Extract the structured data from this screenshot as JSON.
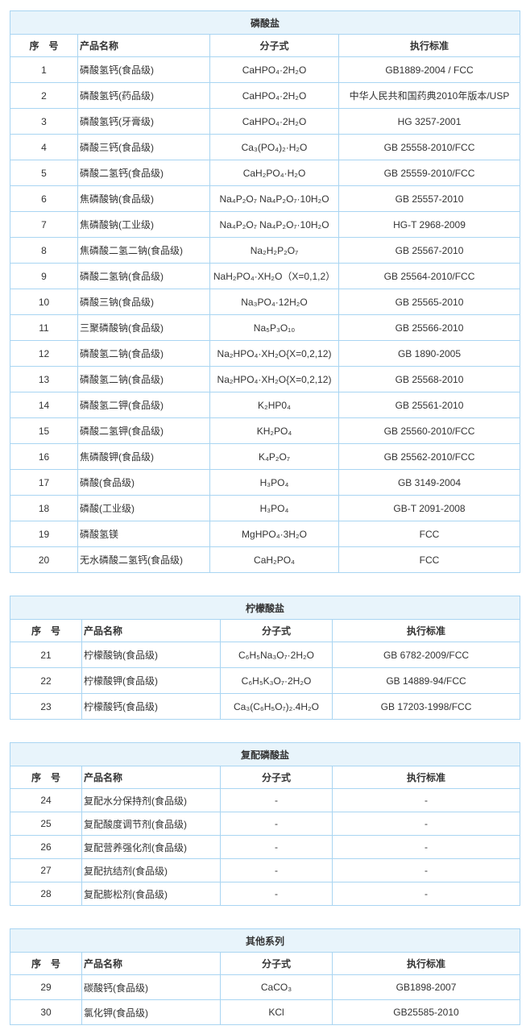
{
  "columns": {
    "index": "序　号",
    "name": "产品名称",
    "formula": "分子式",
    "standard": "执行标准"
  },
  "tables": [
    {
      "title": "磷酸盐",
      "rows": [
        {
          "no": "1",
          "name": "磷酸氢钙(食品级)",
          "formula": "CaHPO₄·2H₂O",
          "standard": "GB1889-2004 / FCC"
        },
        {
          "no": "2",
          "name": "磷酸氢钙(药品级)",
          "formula": "CaHPO₄·2H₂O",
          "standard": "中华人民共和国药典2010年版本/USP"
        },
        {
          "no": "3",
          "name": "磷酸氢钙(牙膏级)",
          "formula": "CaHPO₄·2H₂O",
          "standard": "HG 3257-2001"
        },
        {
          "no": "4",
          "name": "磷酸三钙(食品级)",
          "formula": "Ca₃(PO₄)₂·H₂O",
          "standard": "GB 25558-2010/FCC"
        },
        {
          "no": "5",
          "name": "磷酸二氢钙(食品级)",
          "formula": "CaH₂PO₄·H₂O",
          "standard": "GB 25559-2010/FCC"
        },
        {
          "no": "6",
          "name": "焦磷酸钠(食品级)",
          "formula": "Na₄P₂O₇ Na₄P₂O₇·10H₂O",
          "standard": "GB 25557-2010"
        },
        {
          "no": "7",
          "name": "焦磷酸钠(工业级)",
          "formula": "Na₄P₂O₇ Na₄P₂O₇·10H₂O",
          "standard": "HG-T 2968-2009"
        },
        {
          "no": "8",
          "name": "焦磷酸二氢二钠(食品级)",
          "formula": "Na₂H₂P₂O₇",
          "standard": "GB 25567-2010"
        },
        {
          "no": "9",
          "name": "磷酸二氢钠(食品级)",
          "formula": "NaH₂PO₄·XH₂O（X=0,1,2）",
          "standard": "GB 25564-2010/FCC"
        },
        {
          "no": "10",
          "name": "磷酸三钠(食品级)",
          "formula": "Na₃PO₄·12H₂O",
          "standard": "GB 25565-2010"
        },
        {
          "no": "11",
          "name": "三聚磷酸钠(食品级)",
          "formula": "Na₅P₃O₁₀",
          "standard": "GB 25566-2010"
        },
        {
          "no": "12",
          "name": "磷酸氢二钠(食品级)",
          "formula": "Na₂HPO₄·XH₂O{X=0,2,12)",
          "standard": "GB 1890-2005"
        },
        {
          "no": "13",
          "name": "磷酸氢二钠(食品级)",
          "formula": "Na₂HPO₄·XH₂O{X=0,2,12)",
          "standard": "GB 25568-2010"
        },
        {
          "no": "14",
          "name": "磷酸氢二钾(食品级)",
          "formula": "K₂HP0₄",
          "standard": "GB 25561-2010"
        },
        {
          "no": "15",
          "name": "磷酸二氢钾(食品级)",
          "formula": "KH₂PO₄",
          "standard": "GB 25560-2010/FCC"
        },
        {
          "no": "16",
          "name": "焦磷酸钾(食品级)",
          "formula": "K₄P₂O₇",
          "standard": "GB 25562-2010/FCC"
        },
        {
          "no": "17",
          "name": "磷酸(食品级)",
          "formula": "H₃PO₄",
          "standard": "GB 3149-2004"
        },
        {
          "no": "18",
          "name": "磷酸(工业级)",
          "formula": "H₃PO₄",
          "standard": "GB-T 2091-2008"
        },
        {
          "no": "19",
          "name": "磷酸氢镁",
          "formula": "MgHPO₄·3H₂O",
          "standard": "FCC"
        },
        {
          "no": "20",
          "name": "无水磷酸二氢钙(食品级)",
          "formula": "CaH₂PO₄",
          "standard": "FCC"
        }
      ]
    },
    {
      "title": "柠檬酸盐",
      "rows": [
        {
          "no": "21",
          "name": "柠檬酸钠(食品级)",
          "formula": "C₆H₅Na₃O₇·2H₂O",
          "standard": "GB 6782-2009/FCC"
        },
        {
          "no": "22",
          "name": "柠檬酸钾(食品级)",
          "formula": "C₆H₅K₃O₇·2H₂O",
          "standard": "GB 14889-94/FCC"
        },
        {
          "no": "23",
          "name": "柠檬酸钙(食品级)",
          "formula": "Ca₃(C₆H₅O₇)₂.4H₂O",
          "standard": "GB 17203-1998/FCC"
        }
      ]
    },
    {
      "title": "复配磷酸盐",
      "rows": [
        {
          "no": "24",
          "name": "复配水分保持剂(食品级)",
          "formula": "-",
          "standard": "-"
        },
        {
          "no": "25",
          "name": "复配酸度调节剂(食品级)",
          "formula": "-",
          "standard": "-"
        },
        {
          "no": "26",
          "name": "复配营养强化剂(食品级)",
          "formula": "-",
          "standard": "-"
        },
        {
          "no": "27",
          "name": "复配抗结剂(食品级)",
          "formula": "-",
          "standard": "-"
        },
        {
          "no": "28",
          "name": "复配膨松剂(食品级)",
          "formula": "-",
          "standard": "-"
        }
      ]
    },
    {
      "title": "其他系列",
      "rows": [
        {
          "no": "29",
          "name": "碳酸钙(食品级)",
          "formula": "CaCO₃",
          "standard": "GB1898-2007"
        },
        {
          "no": "30",
          "name": "氯化钾(食品级)",
          "formula": "KCl",
          "standard": "GB25585-2010"
        }
      ]
    }
  ]
}
